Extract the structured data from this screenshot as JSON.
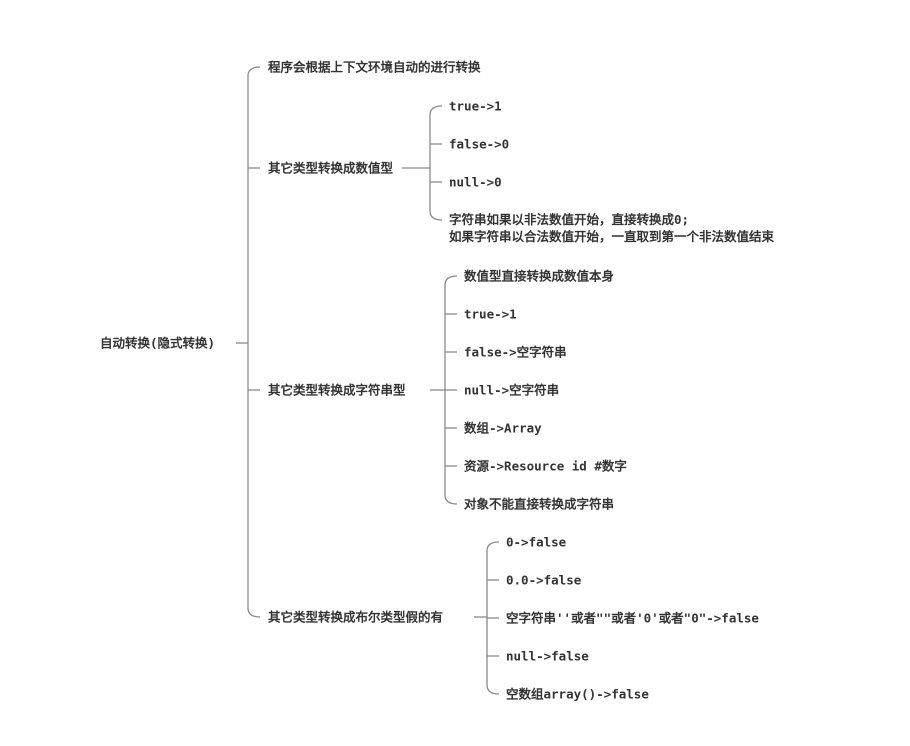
{
  "root": "自动转换(隐式转换)",
  "branches": [
    {
      "label": "程序会根据上下文环境自动的进行转换",
      "children": []
    },
    {
      "label": "其它类型转换成数值型",
      "children": [
        "true->1",
        "false->0",
        "null->0",
        "字符串如果以非法数值开始，直接转换成0;\n如果字符串以合法数值开始，一直取到第一个非法数值结束"
      ]
    },
    {
      "label": "其它类型转换成字符串型",
      "children": [
        "数值型直接转换成数值本身",
        "true->1",
        "false->空字符串",
        "null->空字符串",
        "数组->Array",
        "资源->Resource id #数字",
        "对象不能直接转换成字符串"
      ]
    },
    {
      "label": "其它类型转换成布尔类型假的有",
      "children": [
        "0->false",
        "0.0->false",
        "空字符串''或者\"\"或者'0'或者\"0\"->false",
        "null->false",
        "空数组array()->false"
      ]
    }
  ],
  "colors": {
    "text": "#333333",
    "line": "#8a8a8a"
  }
}
